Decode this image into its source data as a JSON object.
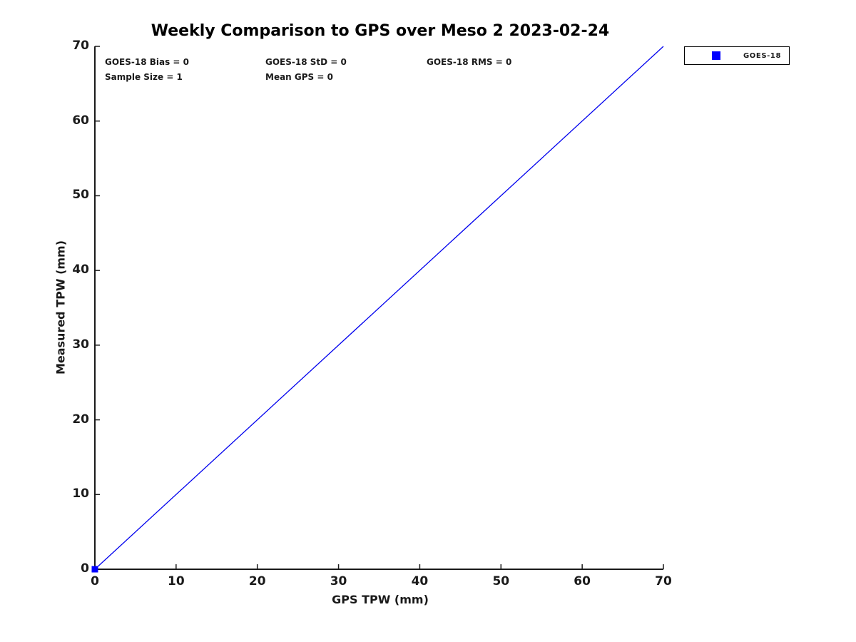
{
  "title": "Weekly Comparison to GPS over Meso 2 2023-02-24",
  "annotations": {
    "bias": "GOES-18 Bias = 0",
    "std": "GOES-18 StD = 0",
    "rms": "GOES-18 RMS = 0",
    "sample_size": "Sample Size = 1",
    "mean_gps": "Mean GPS = 0"
  },
  "legend": {
    "label": "GOES-18",
    "marker_color": "#0000ff",
    "position": "top-right-outside"
  },
  "colors": {
    "line": "#0000ee",
    "marker": "#0000ff",
    "axis": "#1a1a1a",
    "tick_label": "#1a1a1a",
    "background": "#ffffff"
  },
  "chart_data": {
    "type": "scatter",
    "title": "Weekly Comparison to GPS over Meso 2 2023-02-24",
    "xlabel": "GPS TPW (mm)",
    "ylabel": "Measured TPW (mm)",
    "xlim": [
      0,
      70
    ],
    "ylim": [
      0,
      70
    ],
    "x_ticks": [
      0,
      10,
      20,
      30,
      40,
      50,
      60,
      70
    ],
    "y_ticks": [
      0,
      10,
      20,
      30,
      40,
      50,
      60,
      70
    ],
    "grid": false,
    "legend_position": "top-right-outside",
    "series": [
      {
        "name": "GOES-18",
        "marker": "square",
        "color": "#0000ff",
        "x": [
          0
        ],
        "y": [
          0
        ]
      }
    ],
    "reference_line": {
      "from": [
        0,
        0
      ],
      "to": [
        70,
        70
      ],
      "color": "#0000ee"
    },
    "stats": {
      "bias": 0,
      "std": 0,
      "rms": 0,
      "sample_size": 1,
      "mean_gps": 0
    }
  }
}
